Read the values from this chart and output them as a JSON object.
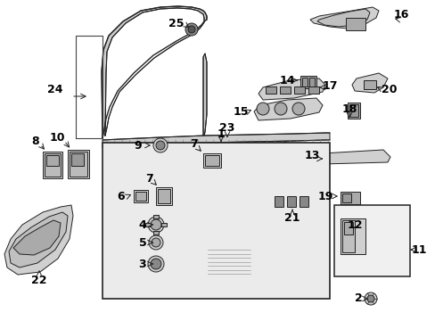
{
  "bg_color": "#ffffff",
  "fig_width": 4.89,
  "fig_height": 3.6,
  "dpi": 100,
  "line_color": "#222222",
  "label_fontsize": 8.5,
  "label_color": "#000000"
}
